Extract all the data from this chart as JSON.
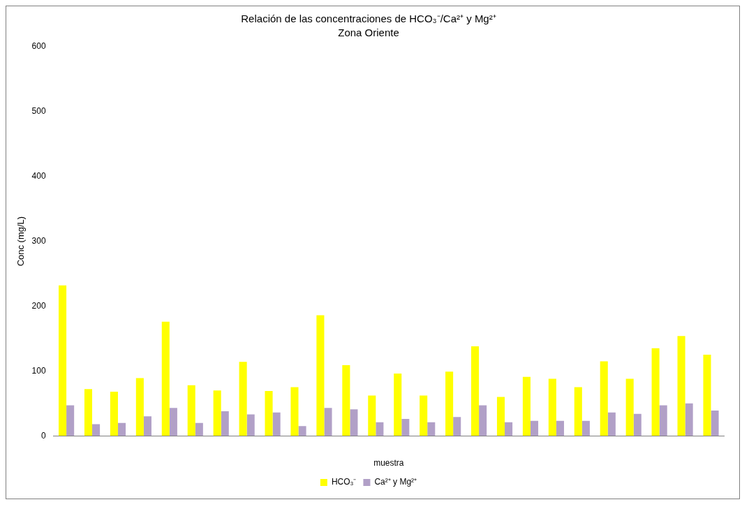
{
  "chart_data": {
    "type": "bar",
    "title": "Relación de las concentraciones de HCO₃⁻/Ca²⁺ y Mg²⁺",
    "subtitle": "Zona Oriente",
    "xlabel": "muestra",
    "ylabel": "Conc (mg/L)",
    "categories": [
      null,
      null,
      null,
      null,
      null,
      null,
      null,
      null,
      null,
      null,
      null,
      null,
      null,
      null,
      null,
      null,
      null,
      null,
      null,
      null,
      null,
      null,
      null,
      null,
      null,
      null
    ],
    "series": [
      {
        "name": "HCO₃⁻",
        "color": "#ffff00",
        "values": [
          232,
          72,
          68,
          89,
          176,
          78,
          70,
          114,
          69,
          75,
          186,
          109,
          62,
          96,
          62,
          99,
          138,
          60,
          91,
          88,
          75,
          115,
          88,
          135,
          154,
          125
        ]
      },
      {
        "name": "Ca²⁺ y Mg²⁺",
        "color": "#b1a0c7",
        "values": [
          47,
          18,
          20,
          30,
          43,
          20,
          38,
          33,
          36,
          15,
          43,
          41,
          21,
          26,
          21,
          29,
          47,
          21,
          23,
          23,
          23,
          36,
          34,
          47,
          50,
          39
        ]
      }
    ],
    "ylim": [
      0,
      600
    ],
    "yticks": [
      0,
      100,
      200,
      300,
      400,
      500,
      600
    ],
    "grid": false,
    "legend": "bottom"
  }
}
